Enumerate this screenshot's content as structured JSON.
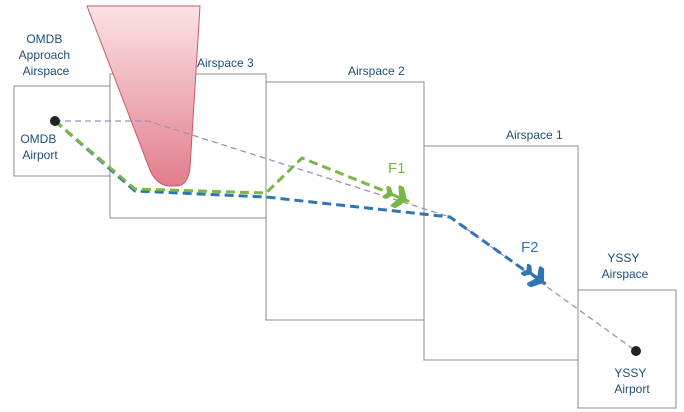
{
  "labels": {
    "omdb_airspace": [
      "OMDB",
      "Approach",
      "Airspace"
    ],
    "omdb_airport": [
      "OMDB",
      "Airport"
    ],
    "airspace3": "Airspace 3",
    "airspace2": "Airspace 2",
    "airspace1": "Airspace 1",
    "yssy_airspace": [
      "YSSY",
      "Airspace"
    ],
    "yssy_airport": [
      "YSSY",
      "Airport"
    ]
  },
  "flights": {
    "f1": {
      "label": "F1",
      "color": "#7ab648"
    },
    "f2": {
      "label": "F2",
      "color": "#2e75b6"
    }
  },
  "colors": {
    "box_stroke": "#8c8c8c",
    "label_text": "#1f4e79",
    "reference_route": "#9a92b8",
    "restricted_zone": "#e8a0aa"
  }
}
